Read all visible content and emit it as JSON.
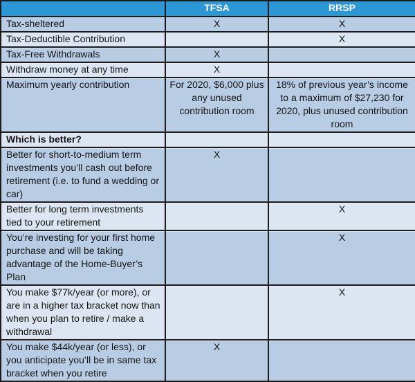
{
  "colors": {
    "header_bg": "#2b97d4",
    "header_text": "#ffffff",
    "row_dark": "#b8cce4",
    "row_light": "#dce6f2",
    "border": "#1b1b1b",
    "text": "#141414"
  },
  "header": {
    "col1": "",
    "tfsa": "TFSA",
    "rrsp": "RRSP"
  },
  "rows": [
    {
      "label": "Tax-sheltered",
      "tfsa": "X",
      "rrsp": "X"
    },
    {
      "label": "Tax-Deductible Contribution",
      "tfsa": "",
      "rrsp": "X"
    },
    {
      "label": "Tax-Free Withdrawals",
      "tfsa": "X",
      "rrsp": ""
    },
    {
      "label": "Withdraw money at any time",
      "tfsa": "X",
      "rrsp": ""
    },
    {
      "label": "Maximum yearly contribution",
      "tfsa": "For 2020, $6,000 plus any unused contribution room",
      "rrsp": "18% of previous year’s income to a maximum of $27,230 for 2020, plus unused contribution room"
    },
    {
      "label": "Which is better?",
      "tfsa": "",
      "rrsp": ""
    },
    {
      "label": "Better for short-to-medium term investments you’ll cash out before retirement (i.e. to fund a wedding or car)",
      "tfsa": "X",
      "rrsp": ""
    },
    {
      "label": "Better for long term investments tied to your retirement",
      "tfsa": "",
      "rrsp": "X"
    },
    {
      "label": "You’re investing for your first home purchase and will be taking advantage of the Home-Buyer’s Plan",
      "tfsa": "",
      "rrsp": "X"
    },
    {
      "label": "You make $77k/year (or more), or are in a higher tax bracket now than when you plan to retire / make a withdrawal",
      "tfsa": "",
      "rrsp": "X"
    },
    {
      "label": "You make $44k/year (or less), or you anticipate you’ll be in same tax bracket when you retire",
      "tfsa": "X",
      "rrsp": ""
    }
  ]
}
